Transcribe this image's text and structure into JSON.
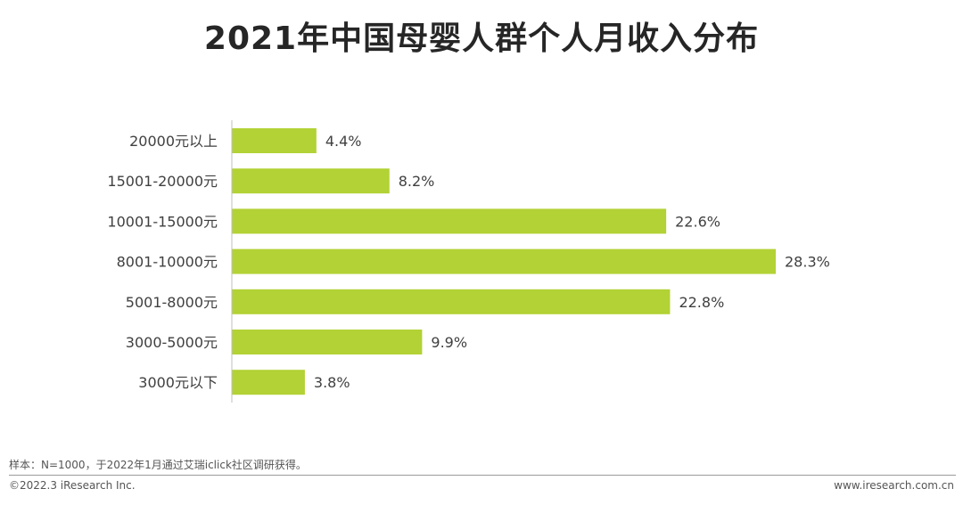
{
  "title": "2021年中国母婴人群个人月收入分布",
  "chart_data": {
    "type": "bar",
    "orientation": "horizontal",
    "categories": [
      "20000元以上",
      "15001-20000元",
      "10001-15000元",
      "8001-10000元",
      "5001-8000元",
      "3000-5000元",
      "3000元以下"
    ],
    "values": [
      4.4,
      8.2,
      22.6,
      28.3,
      22.8,
      9.9,
      3.8
    ],
    "value_labels": [
      "4.4%",
      "8.2%",
      "22.6%",
      "28.3%",
      "22.8%",
      "9.9%",
      "3.8%"
    ],
    "title": "2021年中国母婴人群个人月收入分布",
    "bar_color": "#b2d235",
    "grid": false,
    "legend": "none"
  },
  "footer": {
    "note": "样本：N=1000，于2022年1月通过艾瑞iclick社区调研获得。",
    "copyright": "©2022.3 iResearch Inc.",
    "url": "www.iresearch.com.cn"
  }
}
